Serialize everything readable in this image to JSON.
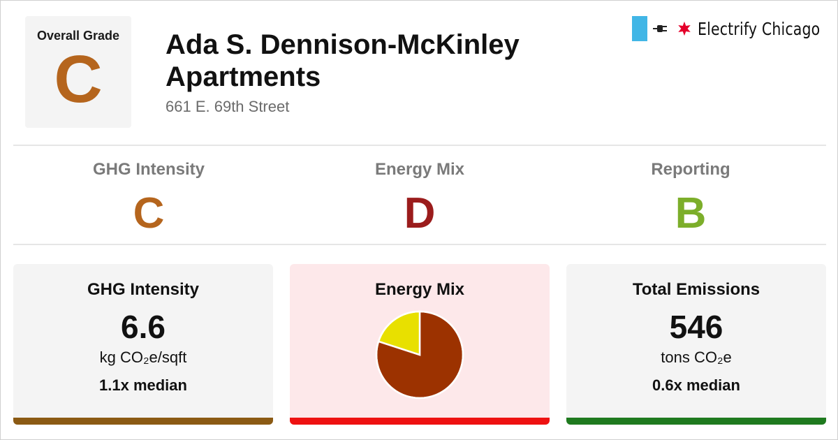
{
  "overall": {
    "label": "Overall Grade",
    "grade": "C",
    "color": "#b5651d"
  },
  "building": {
    "name": "Ada S. Dennison-McKinley Apartments",
    "address": "661 E. 69th Street"
  },
  "brand": {
    "name": "Electrify Chicago",
    "icons": [
      "chicago-flag-bar",
      "plug-icon",
      "red-star-icon"
    ],
    "flag_color": "#41b6e6",
    "star_color": "#e4002b"
  },
  "grades": [
    {
      "category": "GHG Intensity",
      "grade": "C",
      "color": "#b5651d"
    },
    {
      "category": "Energy Mix",
      "grade": "D",
      "color": "#9b1c1c"
    },
    {
      "category": "Reporting",
      "grade": "B",
      "color": "#7cae2a"
    }
  ],
  "cards": {
    "ghg": {
      "title": "GHG Intensity",
      "value": "6.6",
      "unit": "kg CO₂e/sqft",
      "median": "1.1x median",
      "bg": "#f4f4f4",
      "bar_color": "#8b5a14"
    },
    "mix": {
      "title": "Energy Mix",
      "bg": "#fde8ea",
      "bar_color": "#ee1111"
    },
    "total": {
      "title": "Total Emissions",
      "value": "546",
      "unit": "tons CO₂e",
      "median": "0.6x median",
      "bg": "#f4f4f4",
      "bar_color": "#1f7a1f"
    }
  },
  "chart_data": {
    "type": "pie",
    "slices": [
      {
        "value": 0.8,
        "color": "#9c3200"
      },
      {
        "value": 0.2,
        "color": "#e8e000"
      }
    ]
  }
}
